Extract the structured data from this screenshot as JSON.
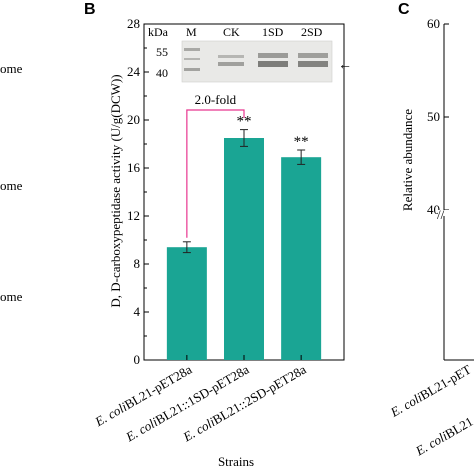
{
  "left_fragments": [
    "ome",
    "ome",
    "ome"
  ],
  "panel_b": {
    "letter": "B",
    "chart_data": {
      "type": "bar",
      "categories": [
        "E. coli BL21-pET28a",
        "E. coli BL21::1SD-pET28a",
        "E. coli BL21::2SD-pET28a"
      ],
      "category_parts": [
        {
          "italic": "E. coli",
          "rest": "BL21-pET28a"
        },
        {
          "italic": "E. coli",
          "rest": "BL21::1SD-pET28a"
        },
        {
          "italic": "E. coli",
          "rest": "BL21::2SD-pET28a"
        }
      ],
      "values": [
        9.4,
        18.5,
        16.9
      ],
      "errors": [
        0.45,
        0.7,
        0.6
      ],
      "significance": [
        "",
        "**",
        "**"
      ],
      "xlabel": "Strains",
      "ylabel": "D, D-carboxypeptidase activity (U/g(DCW))",
      "ylim": [
        0,
        28
      ],
      "yticks": [
        "0",
        "4",
        "8",
        "12",
        "16",
        "20",
        "24",
        "28"
      ],
      "bar_color": "#1aa594",
      "annotation": {
        "text": "2.0-fold",
        "from_category": 0,
        "to_category": 1,
        "color": "#e8368f"
      },
      "gel_inset": {
        "header": [
          "kDa",
          "M",
          "CK",
          "1SD",
          "2SD"
        ],
        "markers": [
          "55",
          "40"
        ],
        "arrow": "←"
      }
    }
  },
  "panel_c": {
    "letter": "C",
    "ylabel": "Relative abundance",
    "yticks": [
      "40",
      "50",
      "60"
    ],
    "axis_break": "//",
    "category_fragments": [
      {
        "italic": "E. coli",
        "rest": "BL21-pET"
      },
      {
        "italic": "E. coli",
        "rest": "BL21"
      }
    ]
  }
}
